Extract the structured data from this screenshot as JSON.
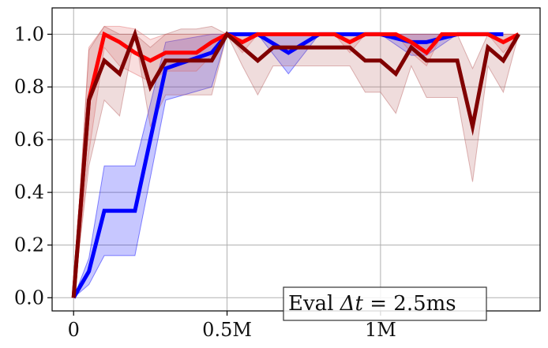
{
  "chart_data": {
    "type": "line",
    "title": "",
    "xlabel": "",
    "ylabel": "",
    "xlim": [
      -70000,
      1520000
    ],
    "ylim": [
      -0.05,
      1.1
    ],
    "grid": true,
    "x_ticks": [
      {
        "value": 0,
        "label": "0"
      },
      {
        "value": 500000,
        "label": "0.5M"
      },
      {
        "value": 1000000,
        "label": "1M"
      }
    ],
    "y_ticks": [
      {
        "value": 0.0,
        "label": "0.0"
      },
      {
        "value": 0.2,
        "label": "0.2"
      },
      {
        "value": 0.4,
        "label": "0.4"
      },
      {
        "value": 0.6,
        "label": "0.6"
      },
      {
        "value": 0.8,
        "label": "0.8"
      },
      {
        "value": 1.0,
        "label": "1.0"
      }
    ],
    "annotation": {
      "prefix": "Eval ",
      "symbol": "Δt",
      "suffix": " = 2.5ms"
    },
    "series": [
      {
        "color": "#0000ff",
        "band_color": "#0000ff",
        "x": [
          0,
          50000,
          100000,
          200000,
          300000,
          450000,
          500000,
          550000,
          600000,
          700000,
          800000,
          900000,
          1000000,
          1100000,
          1150000,
          1250000,
          1400000
        ],
        "y": [
          0,
          0.1,
          0.33,
          0.33,
          0.87,
          0.93,
          1.0,
          1.0,
          1.0,
          0.93,
          1.0,
          1.0,
          1.0,
          0.97,
          0.97,
          1.0,
          1.0
        ],
        "lower": [
          0,
          0.05,
          0.16,
          0.16,
          0.75,
          0.8,
          1.0,
          1.0,
          1.0,
          0.85,
          1.0,
          1.0,
          1.0,
          0.92,
          0.92,
          1.0,
          1.0
        ],
        "upper": [
          0,
          0.15,
          0.5,
          0.5,
          0.97,
          1.0,
          1.0,
          1.0,
          1.0,
          1.0,
          1.0,
          1.0,
          1.0,
          1.0,
          1.0,
          1.0,
          1.0
        ]
      },
      {
        "color": "#ff0000",
        "band_color": "#e36b6b",
        "x": [
          0,
          50000,
          100000,
          150000,
          200000,
          250000,
          300000,
          350000,
          400000,
          450000,
          500000,
          550000,
          600000,
          650000,
          700000,
          750000,
          800000,
          850000,
          900000,
          950000,
          1000000,
          1050000,
          1100000,
          1150000,
          1200000,
          1250000,
          1300000,
          1350000,
          1400000,
          1450000
        ],
        "y": [
          0,
          0.75,
          1.0,
          0.97,
          0.93,
          0.9,
          0.93,
          0.93,
          0.93,
          0.97,
          1.0,
          0.97,
          1.0,
          1.0,
          1.0,
          1.0,
          1.0,
          1.0,
          0.97,
          1.0,
          1.0,
          1.0,
          0.97,
          0.93,
          1.0,
          1.0,
          1.0,
          1.0,
          0.97,
          1.0
        ],
        "lower": [
          0,
          0.55,
          0.95,
          0.88,
          0.85,
          0.82,
          0.86,
          0.86,
          0.86,
          0.92,
          1.0,
          0.93,
          1.0,
          1.0,
          1.0,
          1.0,
          1.0,
          1.0,
          0.93,
          1.0,
          1.0,
          1.0,
          0.93,
          0.88,
          1.0,
          1.0,
          1.0,
          1.0,
          0.93,
          1.0
        ],
        "upper": [
          0,
          0.95,
          1.03,
          1.03,
          1.02,
          0.98,
          1.0,
          1.0,
          1.0,
          1.0,
          1.0,
          1.0,
          1.0,
          1.0,
          1.0,
          1.0,
          1.0,
          1.0,
          1.0,
          1.0,
          1.0,
          1.0,
          1.0,
          1.0,
          1.0,
          1.0,
          1.0,
          1.0,
          1.0,
          1.0
        ]
      },
      {
        "color": "#800000",
        "band_color": "#b86060",
        "x": [
          0,
          50000,
          100000,
          150000,
          200000,
          250000,
          300000,
          350000,
          400000,
          450000,
          500000,
          550000,
          600000,
          650000,
          700000,
          750000,
          800000,
          850000,
          900000,
          950000,
          1000000,
          1050000,
          1100000,
          1150000,
          1200000,
          1250000,
          1300000,
          1350000,
          1400000,
          1450000
        ],
        "y": [
          0,
          0.75,
          0.9,
          0.85,
          1.0,
          0.8,
          0.9,
          0.9,
          0.9,
          0.9,
          1.0,
          0.95,
          0.9,
          0.95,
          0.95,
          0.95,
          0.95,
          0.95,
          0.95,
          0.9,
          0.9,
          0.85,
          0.95,
          0.9,
          0.9,
          0.9,
          0.65,
          0.95,
          0.9,
          1.0
        ],
        "lower": [
          0,
          0.5,
          0.75,
          0.69,
          1.0,
          0.65,
          0.77,
          0.77,
          0.77,
          0.77,
          1.0,
          0.88,
          0.77,
          0.88,
          0.88,
          0.88,
          0.88,
          0.88,
          0.88,
          0.78,
          0.78,
          0.7,
          0.88,
          0.76,
          0.76,
          0.76,
          0.44,
          0.88,
          0.78,
          1.0
        ],
        "upper": [
          0,
          0.94,
          1.03,
          1.0,
          1.0,
          0.95,
          1.0,
          1.02,
          1.02,
          1.03,
          1.0,
          1.0,
          1.0,
          1.0,
          1.0,
          1.0,
          1.0,
          1.0,
          1.0,
          1.0,
          1.0,
          1.0,
          1.0,
          1.0,
          1.0,
          1.0,
          0.87,
          1.0,
          1.0,
          1.0
        ]
      }
    ]
  }
}
